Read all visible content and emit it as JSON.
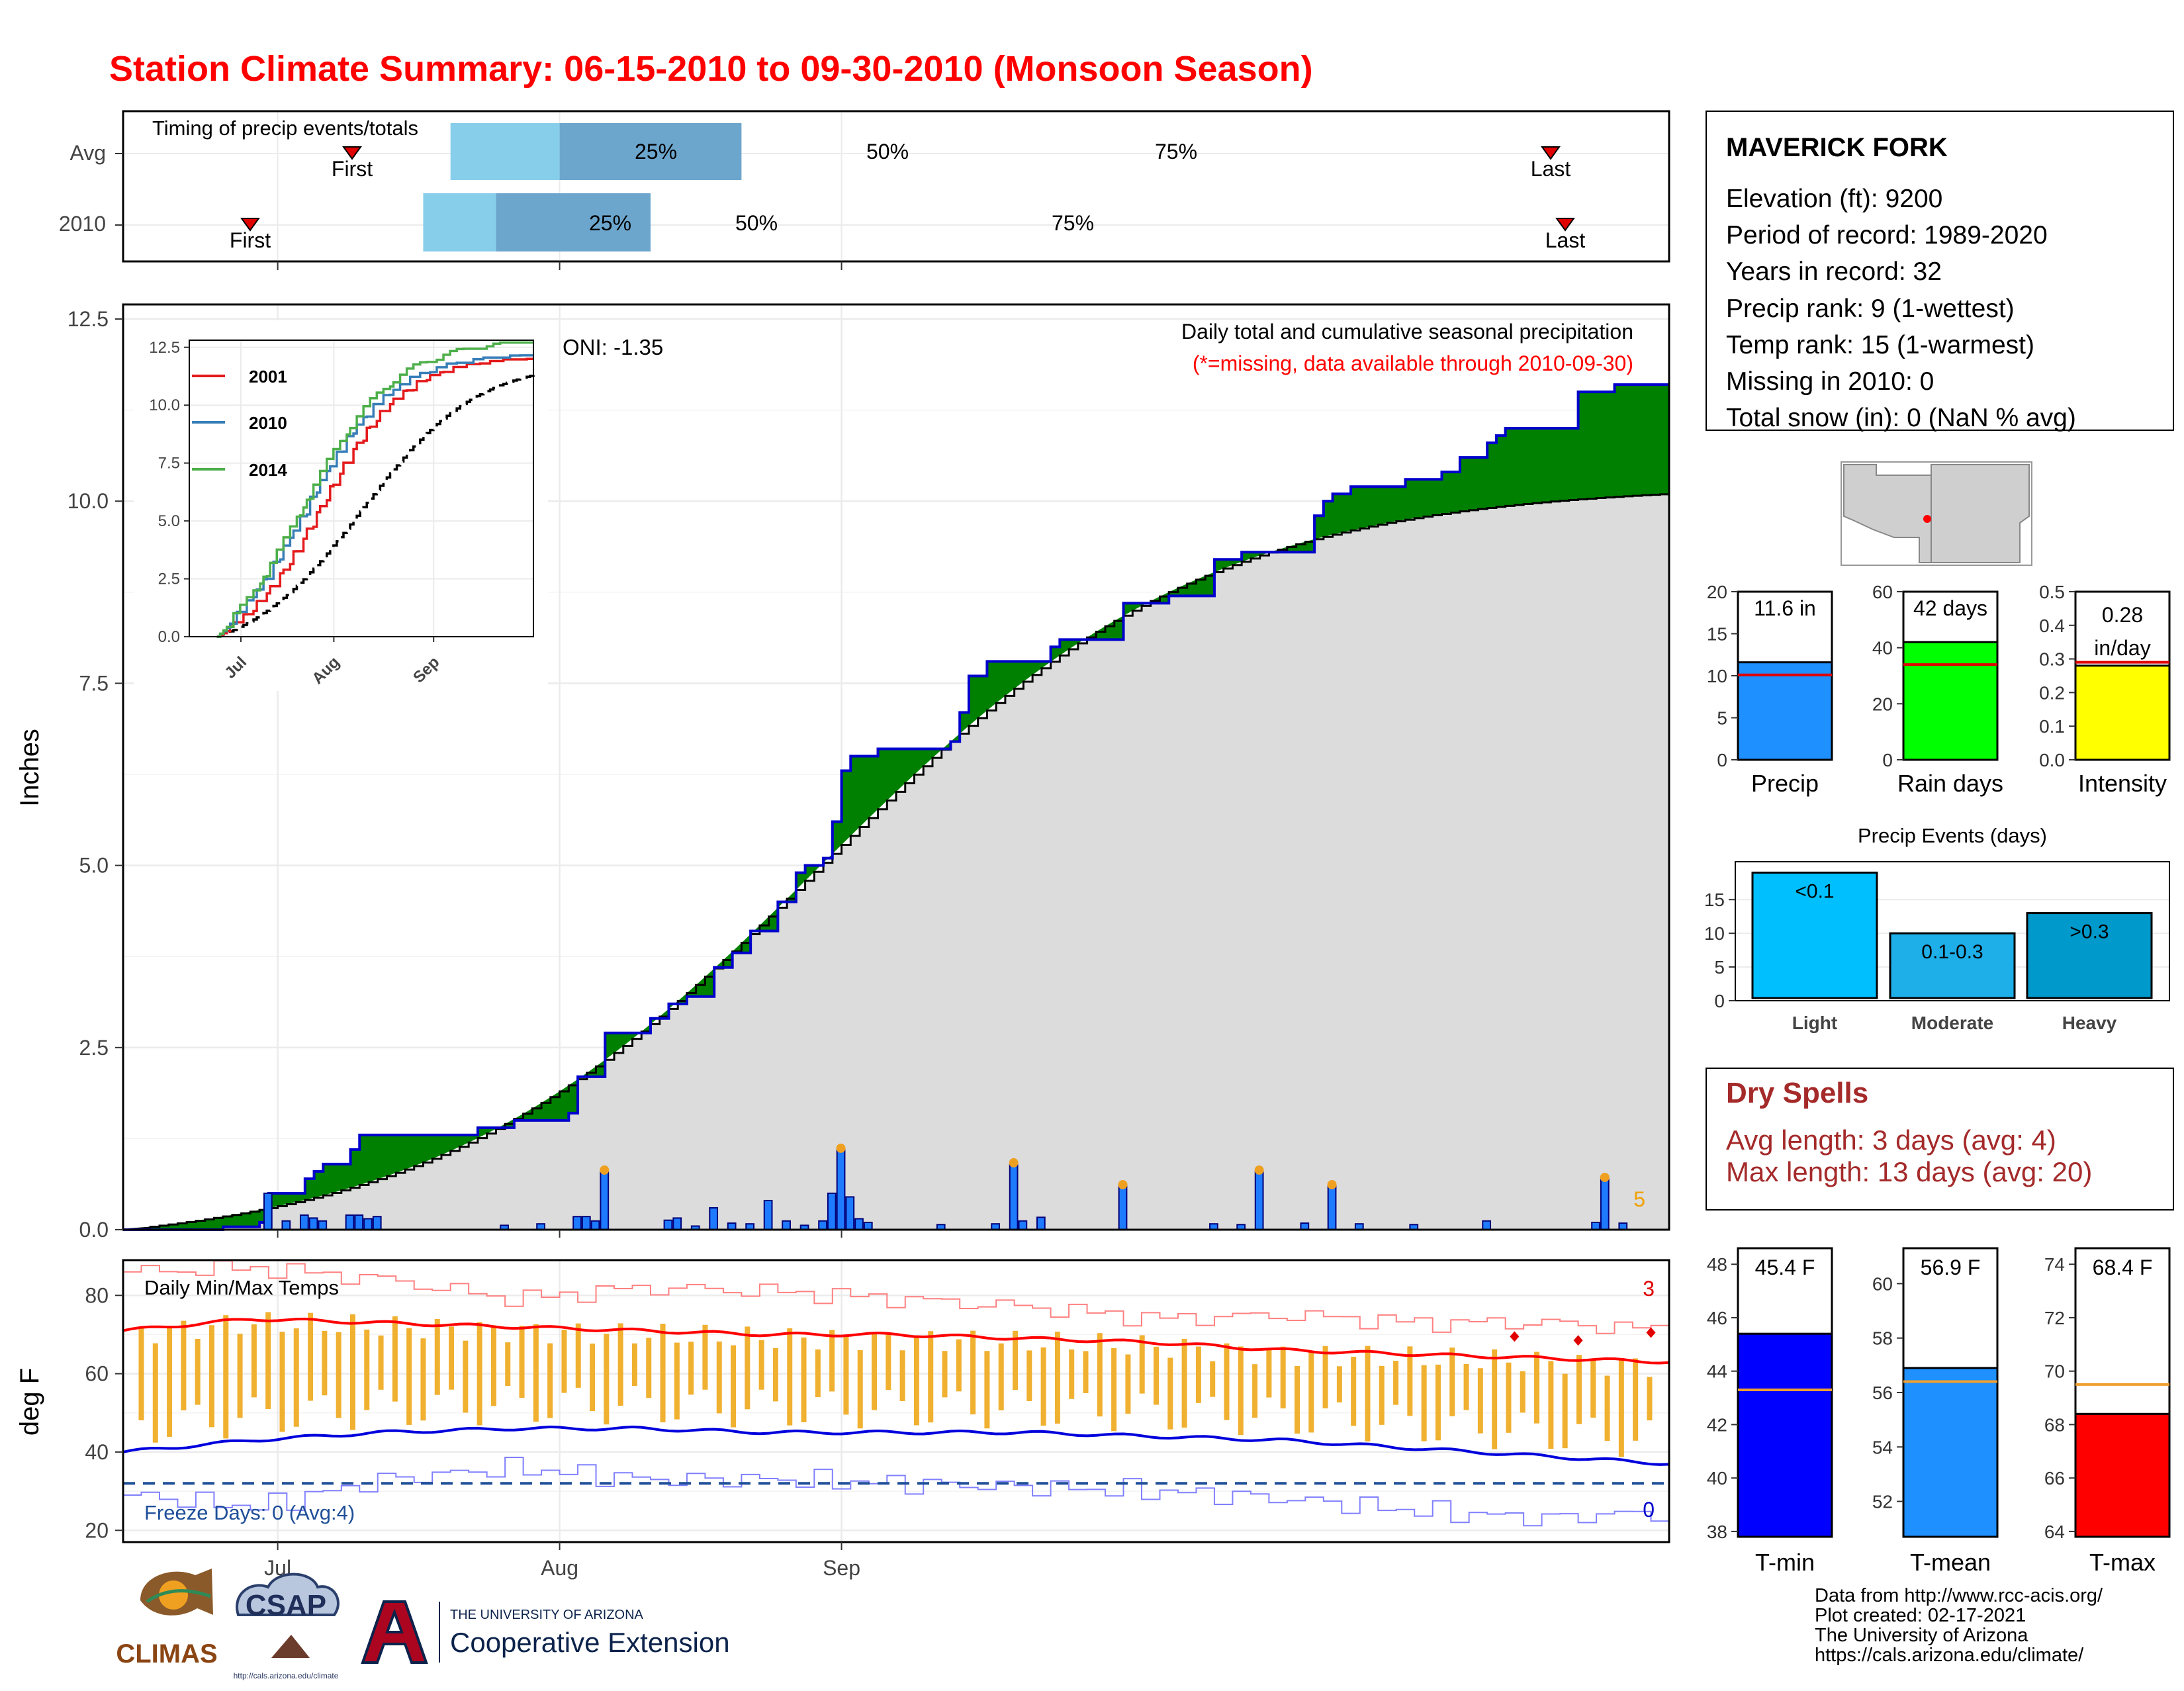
{
  "title": "Station Climate Summary: 06-15-2010 to 09-30-2010 (Monsoon Season)",
  "colors": {
    "title": "#ff0000",
    "cum_fill": "#008000",
    "cum_line": "#0000cc",
    "avg_fill": "#dcdcdc",
    "daily_bar": "#1e7bff",
    "box_light": "#87ceeb",
    "box_dark": "#6ca6cd",
    "precip_bar": "#1e90ff",
    "raindays_bar": "#00ff00",
    "intensity_bar": "#ffff00",
    "tmin_bar": "#0000ff",
    "tmean_bar": "#1e90ff",
    "tmax_bar": "#ff0000",
    "temp_bar": "#f0b030",
    "dry_spell_text": "#a52a2a"
  },
  "station": {
    "name": "MAVERICK FORK",
    "lines": [
      "Elevation (ft): 9200",
      "Period of record: 1989-2020",
      "Years in record: 32",
      "Precip rank: 9 (1-wettest)",
      "Temp rank: 15 (1-warmest)",
      "Missing in 2010: 0",
      "Total snow (in): 0 (NaN % avg)"
    ]
  },
  "timing": {
    "label": "Timing of precip events/totals",
    "rows": [
      {
        "name": "Avg",
        "first": "First",
        "last": "Last",
        "q25": "25%",
        "q50": "50%",
        "q75": "75%"
      },
      {
        "name": "2010",
        "first": "First",
        "last": "Last",
        "q25": "25%",
        "q50": "50%",
        "q75": "75%"
      }
    ],
    "values": {
      "Avg": {
        "first": "06-20",
        "q25": "07-21",
        "q50": "08-02",
        "q75": "08-22",
        "last": "09-28"
      },
      "2010": {
        "first": "06-28",
        "q25": "07-18",
        "q50": "07-26",
        "q75": "08-12",
        "last": "09-29"
      }
    }
  },
  "main_chart": {
    "ylabel": "Inches",
    "oni": "ONI: -1.35",
    "desc": "Daily total and cumulative seasonal precipitation",
    "note": "(*=missing, data available through 2010-09-30)",
    "corner_count": "5",
    "y_ticks": [
      "0.0",
      "2.5",
      "5.0",
      "7.5",
      "10.0",
      "12.5"
    ],
    "x_ticks": [
      "Jul",
      "Aug",
      "Sep"
    ]
  },
  "inset": {
    "legend": [
      "2001",
      "2010",
      "2014"
    ],
    "y_ticks": [
      "0.0",
      "2.5",
      "5.0",
      "7.5",
      "10.0",
      "12.5"
    ],
    "x_ticks": [
      "Jul",
      "Aug",
      "Sep"
    ]
  },
  "summary_bars": [
    {
      "label": "Precip",
      "value_text": "11.6 in",
      "ticks": [
        "0",
        "5",
        "10",
        "15",
        "20"
      ]
    },
    {
      "label": "Rain days",
      "value_text": "42 days",
      "ticks": [
        "0",
        "20",
        "40",
        "60"
      ]
    },
    {
      "label": "Intensity",
      "value_text": "0.28",
      "value_text2": "in/day",
      "ticks": [
        "0.0",
        "0.1",
        "0.2",
        "0.3",
        "0.4",
        "0.5"
      ]
    }
  ],
  "events": {
    "title": "Precip Events (days)",
    "ticks": [
      "0",
      "5",
      "10",
      "15"
    ],
    "bars": [
      {
        "label": "Light",
        "inner": "<0.1"
      },
      {
        "label": "Moderate",
        "inner": "0.1-0.3"
      },
      {
        "label": "Heavy",
        "inner": ">0.3"
      }
    ]
  },
  "dry_spells": {
    "title": "Dry Spells",
    "avg": "Avg length: 3 days (avg: 4)",
    "max": "Max length: 13 days (avg: 20)"
  },
  "temp_chart": {
    "label": "Daily Min/Max Temps",
    "ylabel": "deg F",
    "freeze": "Freeze Days: 0 (Avg:4)",
    "count_hot": "3",
    "count_cold": "0",
    "y_ticks": [
      "20",
      "40",
      "60",
      "80"
    ],
    "x_ticks": [
      "Jul",
      "Aug",
      "Sep"
    ]
  },
  "temp_bars": [
    {
      "label": "T-min",
      "value_text": "45.4 F",
      "ticks": [
        "38",
        "40",
        "42",
        "44",
        "46",
        "48"
      ]
    },
    {
      "label": "T-mean",
      "value_text": "56.9 F",
      "ticks": [
        "52",
        "54",
        "56",
        "58",
        "60"
      ]
    },
    {
      "label": "T-max",
      "value_text": "68.4 F",
      "ticks": [
        "64",
        "66",
        "68",
        "70",
        "72",
        "74"
      ]
    }
  ],
  "footer": {
    "lines": [
      "Data from http://www.rcc-acis.org/",
      "Plot created: 02-17-2021",
      "The University of Arizona",
      "https://cals.arizona.edu/climate/"
    ],
    "logo_climas": "CLIMAS",
    "logo_csap": "CSAP",
    "logo_csap_url": "http://cals.arizona.edu/climate",
    "logo_ua_1": "THE UNIVERSITY OF ARIZONA",
    "logo_ua_2": "Cooperative Extension"
  },
  "chart_data": [
    {
      "type": "area",
      "title": "Daily total and cumulative seasonal precipitation",
      "ylabel": "Inches",
      "x_range": [
        "2010-06-15",
        "2010-09-30"
      ],
      "ylim": [
        0,
        12.7
      ],
      "cum_2010": [
        [
          "06-15",
          0.0
        ],
        [
          "06-26",
          0.04
        ],
        [
          "06-30",
          0.1
        ],
        [
          "07-01",
          0.5
        ],
        [
          "07-05",
          0.7
        ],
        [
          "07-06",
          0.8
        ],
        [
          "07-07",
          0.9
        ],
        [
          "07-10",
          1.1
        ],
        [
          "07-11",
          1.3
        ],
        [
          "07-24",
          1.4
        ],
        [
          "07-28",
          1.5
        ],
        [
          "08-03",
          1.6
        ],
        [
          "08-04",
          2.1
        ],
        [
          "08-07",
          2.7
        ],
        [
          "08-12",
          2.9
        ],
        [
          "08-14",
          3.1
        ],
        [
          "08-16",
          3.2
        ],
        [
          "08-19",
          3.6
        ],
        [
          "08-21",
          3.8
        ],
        [
          "08-23",
          4.1
        ],
        [
          "08-26",
          4.5
        ],
        [
          "08-28",
          4.9
        ],
        [
          "08-29",
          5.0
        ],
        [
          "08-31",
          5.1
        ],
        [
          "09-01",
          5.6
        ],
        [
          "09-02",
          6.3
        ],
        [
          "09-03",
          6.5
        ],
        [
          "09-06",
          6.6
        ],
        [
          "09-14",
          6.7
        ],
        [
          "09-15",
          7.1
        ],
        [
          "09-16",
          7.6
        ],
        [
          "09-18",
          7.8
        ],
        [
          "09-25",
          8.0
        ],
        [
          "09-26",
          8.1
        ],
        [
          "10-03",
          8.6
        ],
        [
          "10-08",
          8.7
        ],
        [
          "10-13",
          9.2
        ],
        [
          "10-16",
          9.3
        ],
        [
          "10-24",
          9.8
        ],
        [
          "10-25",
          10.0
        ],
        [
          "10-26",
          10.1
        ],
        [
          "10-28",
          10.2
        ],
        [
          "11-03",
          10.3
        ],
        [
          "11-07",
          10.4
        ],
        [
          "11-09",
          10.6
        ],
        [
          "11-12",
          10.8
        ],
        [
          "11-13",
          10.9
        ],
        [
          "11-14",
          11.0
        ],
        [
          "11-22",
          11.5
        ],
        [
          "11-26",
          11.6
        ],
        [
          "11-30",
          11.6
        ]
      ],
      "cum_avg_end": 10.1,
      "daily_precip": [
        [
          "07-01",
          0.5
        ],
        [
          "07-03",
          0.12
        ],
        [
          "07-05",
          0.2
        ],
        [
          "07-06",
          0.16
        ],
        [
          "07-07",
          0.12
        ],
        [
          "07-10",
          0.2
        ],
        [
          "07-11",
          0.2
        ],
        [
          "07-12",
          0.15
        ],
        [
          "07-13",
          0.18
        ],
        [
          "07-27",
          0.06
        ],
        [
          "07-31",
          0.08
        ],
        [
          "08-04",
          0.18
        ],
        [
          "08-05",
          0.18
        ],
        [
          "08-06",
          0.12
        ],
        [
          "08-07",
          0.8
        ],
        [
          "08-14",
          0.13
        ],
        [
          "08-15",
          0.16
        ],
        [
          "08-17",
          0.05
        ],
        [
          "08-19",
          0.3
        ],
        [
          "08-21",
          0.09
        ],
        [
          "08-23",
          0.08
        ],
        [
          "08-25",
          0.4
        ],
        [
          "08-27",
          0.12
        ],
        [
          "08-29",
          0.06
        ],
        [
          "08-31",
          0.12
        ],
        [
          "09-01",
          0.5
        ],
        [
          "09-02",
          1.1
        ],
        [
          "09-03",
          0.45
        ],
        [
          "09-04",
          0.15
        ],
        [
          "09-05",
          0.1
        ],
        [
          "09-13",
          0.07
        ],
        [
          "09-19",
          0.08
        ],
        [
          "09-21",
          0.9
        ],
        [
          "09-22",
          0.12
        ],
        [
          "09-24",
          0.17
        ],
        [
          "10-03",
          0.6
        ],
        [
          "10-13",
          0.08
        ],
        [
          "10-16",
          0.07
        ],
        [
          "10-18",
          0.8
        ],
        [
          "10-23",
          0.09
        ],
        [
          "10-26",
          0.6
        ],
        [
          "10-29",
          0.08
        ],
        [
          "11-04",
          0.07
        ],
        [
          "11-12",
          0.12
        ],
        [
          "11-24",
          0.1
        ],
        [
          "11-25",
          0.7
        ],
        [
          "11-27",
          0.09
        ]
      ]
    },
    {
      "type": "line",
      "title": "",
      "series": [
        {
          "name": "2001",
          "end": 11.8
        },
        {
          "name": "2010",
          "end": 11.9
        },
        {
          "name": "2014",
          "end": 12.5
        }
      ],
      "ylim": [
        0,
        12.5
      ],
      "avg_end": 11.3
    },
    {
      "type": "bar",
      "title": "",
      "categories": [
        "Precip",
        "Rain days",
        "Intensity"
      ],
      "values": [
        11.6,
        42,
        0.28
      ],
      "averages": [
        10.1,
        34,
        0.29
      ],
      "ylims": [
        [
          0,
          20
        ],
        [
          0,
          60
        ],
        [
          0,
          0.5
        ]
      ]
    },
    {
      "type": "bar",
      "title": "Precip Events (days)",
      "categories": [
        "Light",
        "Moderate",
        "Heavy"
      ],
      "values": [
        19,
        10,
        13
      ],
      "ylim": [
        0,
        20
      ]
    },
    {
      "type": "bar",
      "title": "",
      "categories": [
        "T-min",
        "T-mean",
        "T-max"
      ],
      "values": [
        45.4,
        56.9,
        68.4
      ],
      "averages": [
        43.3,
        56.4,
        69.5
      ],
      "ylims": [
        [
          37.8,
          48.6
        ],
        [
          50.7,
          61.3
        ],
        [
          63.8,
          74.6
        ]
      ]
    },
    {
      "type": "bar",
      "title": "Daily Min/Max Temps",
      "ylabel": "deg F",
      "ylim": [
        17,
        89
      ],
      "tmax_avg": [
        71,
        74,
        73,
        72,
        71,
        70,
        70,
        69,
        68,
        66,
        65,
        64,
        63
      ],
      "tmin_avg": [
        40,
        43,
        45,
        46,
        46,
        45,
        45,
        45,
        44,
        43,
        41,
        39,
        37
      ],
      "tmax_extreme": [
        86,
        87,
        84,
        79,
        82,
        81,
        79,
        77,
        74,
        75,
        73,
        73,
        71
      ],
      "tmin_extreme": [
        29,
        26,
        33,
        36,
        33,
        33,
        32,
        31,
        30,
        28,
        25,
        23,
        25
      ],
      "freeze_line": 32
    }
  ]
}
